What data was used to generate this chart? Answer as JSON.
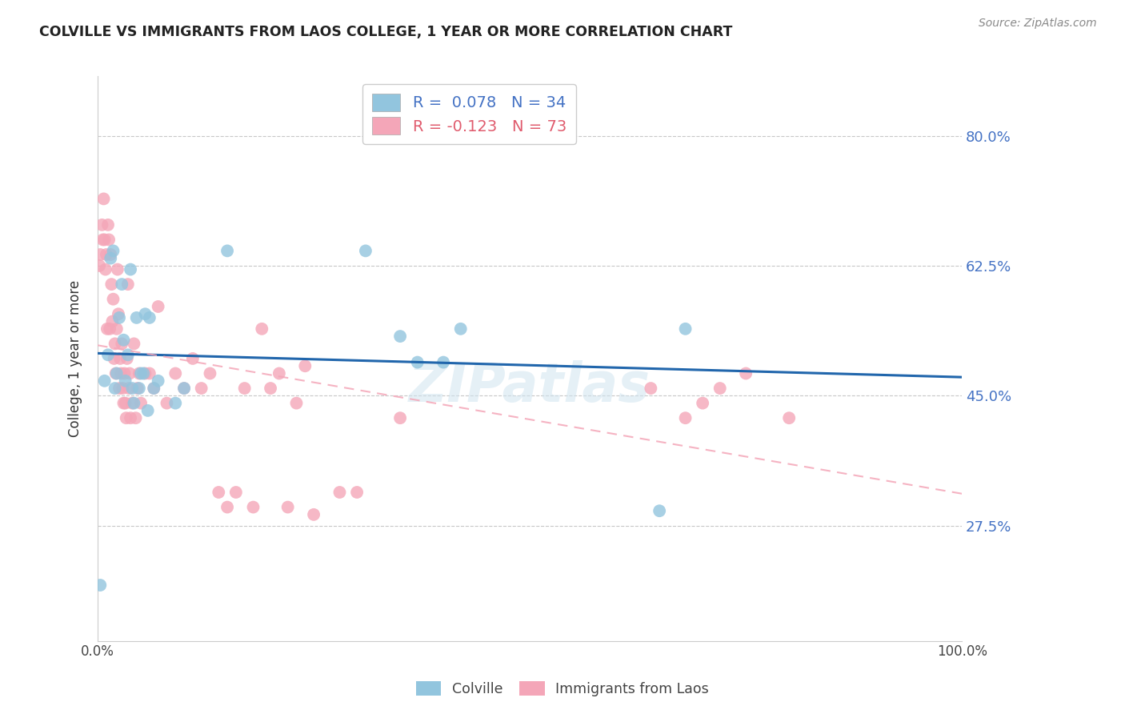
{
  "title": "COLVILLE VS IMMIGRANTS FROM LAOS COLLEGE, 1 YEAR OR MORE CORRELATION CHART",
  "source": "Source: ZipAtlas.com",
  "ylabel": "College, 1 year or more",
  "ytick_labels": [
    "80.0%",
    "62.5%",
    "45.0%",
    "27.5%"
  ],
  "ytick_values": [
    0.8,
    0.625,
    0.45,
    0.275
  ],
  "xlim": [
    0.0,
    1.0
  ],
  "ylim": [
    0.12,
    0.88
  ],
  "colville_color": "#92c5de",
  "laos_color": "#f4a6b8",
  "colville_line_color": "#2166ac",
  "laos_line_color": "#f4a6b8",
  "watermark": "ZIPatlas",
  "colville_R": 0.078,
  "colville_N": 34,
  "laos_R": -0.123,
  "laos_N": 73,
  "colville_points_x": [
    0.003,
    0.008,
    0.012,
    0.015,
    0.018,
    0.02,
    0.022,
    0.025,
    0.028,
    0.03,
    0.032,
    0.035,
    0.038,
    0.04,
    0.042,
    0.045,
    0.048,
    0.05,
    0.053,
    0.055,
    0.058,
    0.06,
    0.065,
    0.07,
    0.09,
    0.1,
    0.15,
    0.31,
    0.35,
    0.37,
    0.4,
    0.42,
    0.65,
    0.68
  ],
  "colville_points_y": [
    0.195,
    0.47,
    0.505,
    0.635,
    0.645,
    0.46,
    0.48,
    0.555,
    0.6,
    0.525,
    0.47,
    0.505,
    0.62,
    0.46,
    0.44,
    0.555,
    0.46,
    0.48,
    0.48,
    0.56,
    0.43,
    0.555,
    0.46,
    0.47,
    0.44,
    0.46,
    0.645,
    0.645,
    0.53,
    0.495,
    0.495,
    0.54,
    0.295,
    0.54
  ],
  "laos_points_x": [
    0.002,
    0.003,
    0.005,
    0.006,
    0.007,
    0.008,
    0.009,
    0.01,
    0.011,
    0.012,
    0.013,
    0.014,
    0.015,
    0.016,
    0.017,
    0.018,
    0.019,
    0.02,
    0.021,
    0.022,
    0.023,
    0.024,
    0.025,
    0.026,
    0.027,
    0.028,
    0.029,
    0.03,
    0.031,
    0.032,
    0.033,
    0.034,
    0.035,
    0.036,
    0.037,
    0.038,
    0.04,
    0.042,
    0.044,
    0.046,
    0.048,
    0.05,
    0.055,
    0.06,
    0.065,
    0.07,
    0.08,
    0.09,
    0.1,
    0.11,
    0.12,
    0.13,
    0.14,
    0.15,
    0.16,
    0.17,
    0.18,
    0.19,
    0.2,
    0.21,
    0.22,
    0.23,
    0.24,
    0.25,
    0.28,
    0.3,
    0.35,
    0.64,
    0.68,
    0.7,
    0.72,
    0.75,
    0.8
  ],
  "laos_points_y": [
    0.625,
    0.64,
    0.68,
    0.66,
    0.715,
    0.66,
    0.62,
    0.64,
    0.54,
    0.68,
    0.66,
    0.54,
    0.64,
    0.6,
    0.55,
    0.58,
    0.5,
    0.52,
    0.48,
    0.54,
    0.62,
    0.56,
    0.46,
    0.5,
    0.48,
    0.52,
    0.46,
    0.44,
    0.48,
    0.44,
    0.42,
    0.5,
    0.6,
    0.46,
    0.48,
    0.42,
    0.44,
    0.52,
    0.42,
    0.46,
    0.48,
    0.44,
    0.48,
    0.48,
    0.46,
    0.57,
    0.44,
    0.48,
    0.46,
    0.5,
    0.46,
    0.48,
    0.32,
    0.3,
    0.32,
    0.46,
    0.3,
    0.54,
    0.46,
    0.48,
    0.3,
    0.44,
    0.49,
    0.29,
    0.32,
    0.32,
    0.42,
    0.46,
    0.42,
    0.44,
    0.46,
    0.48,
    0.42
  ]
}
